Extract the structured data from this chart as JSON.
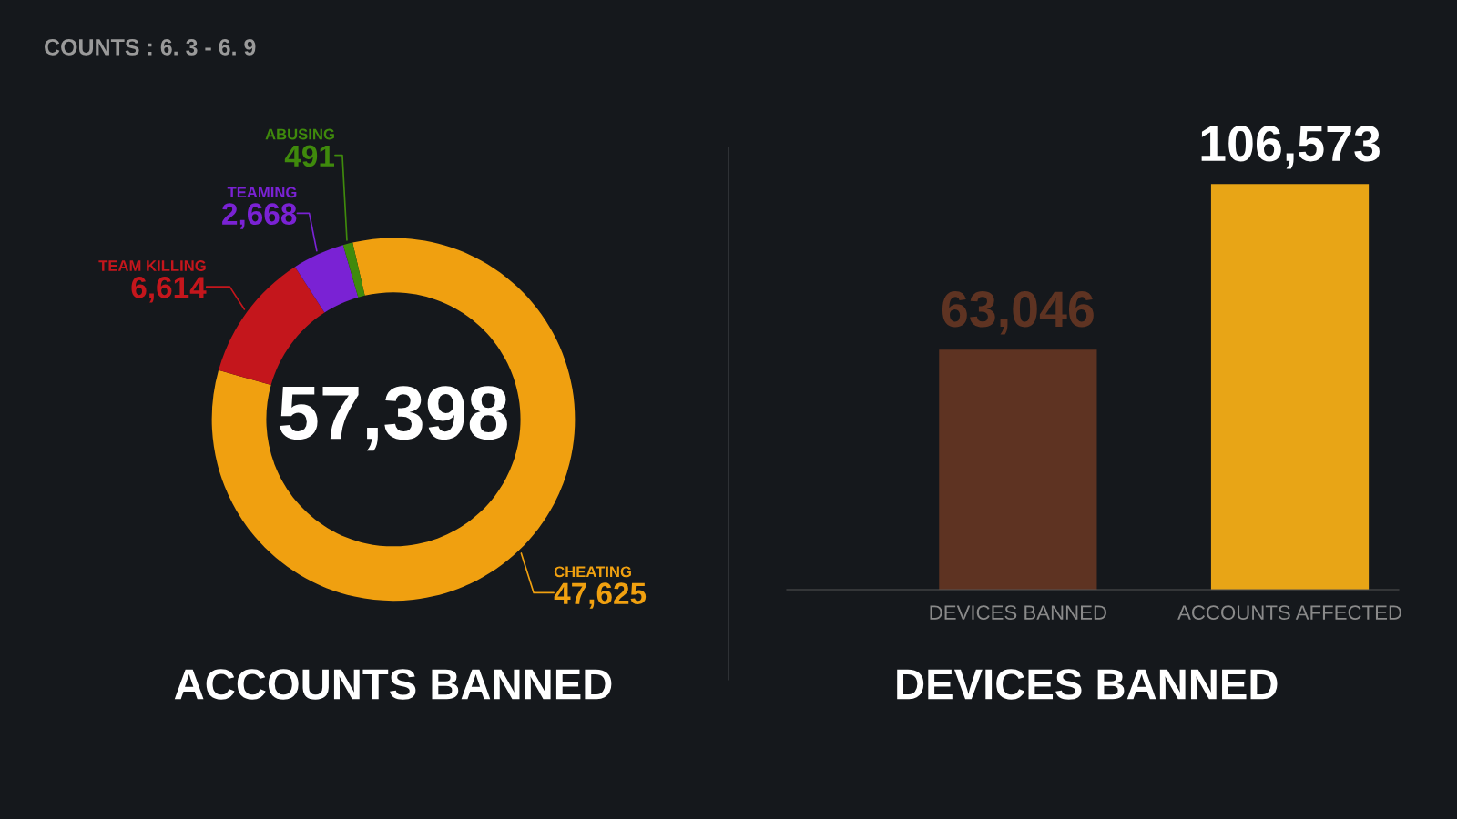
{
  "chart_data": [
    {
      "type": "donut",
      "title": "ACCOUNTS BANNED",
      "categories": [
        "CHEATING",
        "TEAM KILLING",
        "TEAMING",
        "ABUSING"
      ],
      "values": [
        47625,
        6614,
        2668,
        491
      ],
      "colors": [
        "#f0a010",
        "#c4161c",
        "#7a22d4",
        "#3f8a0c"
      ],
      "value_labels": [
        "47,625",
        "6,614",
        "2,668",
        "491"
      ],
      "annotations": [
        "57,398",
        "COUNTS : 6. 3 - 6. 9"
      ]
    },
    {
      "type": "bar",
      "title": "DEVICES BANNED",
      "categories": [
        "DEVICES BANNED",
        "ACCOUNTS AFFECTED"
      ],
      "values": [
        63046,
        106573
      ],
      "colors": [
        "#5e3322",
        "#e8a516"
      ],
      "value_labels": [
        "63,046",
        "106,573"
      ]
    }
  ]
}
